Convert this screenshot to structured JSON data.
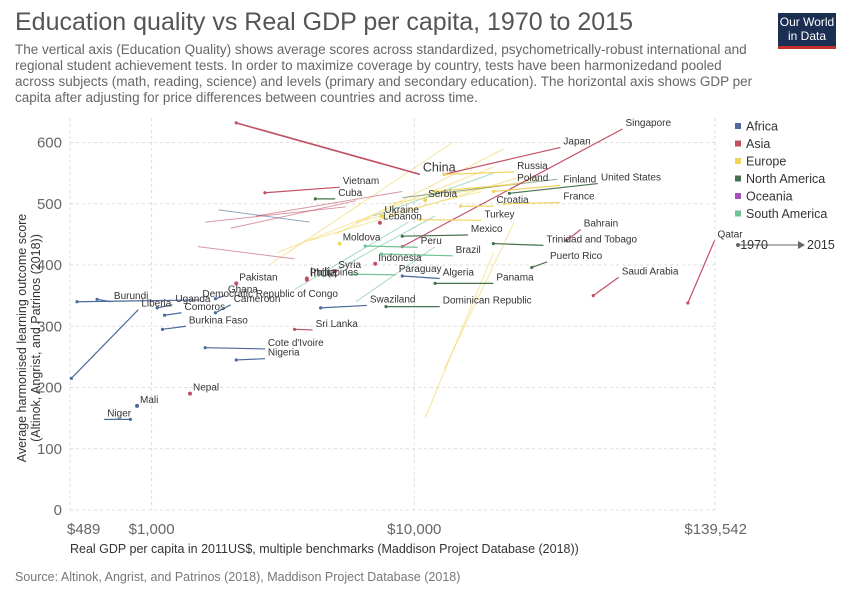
{
  "title": "Education quality vs Real GDP per capita, 1970 to 2015",
  "subtitle": "The vertical axis (Education Quality) shows average scores across standardized, psychometrically-robust international and regional student achievement tests. In order to maximize coverage by country, tests have been harmonizedand pooled across subjects (math, reading, science) and levels (primary and secondary education). The horizontal axis shows GDP per capita after adjusting for price differences between countries and across time.",
  "logo": {
    "line1": "Our World",
    "line2": "in Data"
  },
  "source": "Source: Altinok, Angrist, and Patrinos (2018), Maddison Project Database (2018)",
  "colors": {
    "Africa": "#4c6a9c",
    "Asia": "#c15065",
    "Europe": "#f1d45c",
    "North America": "#47714e",
    "Oceania": "#a652ba",
    "South America": "#6ec295",
    "neutral": "#cccccc"
  },
  "chart_data": {
    "type": "scatter",
    "xlabel": "Real GDP per capita in 2011US$, multiple benchmarks (Maddison Project Database (2018))",
    "ylabel": "Average harmonised learning outcome score (Altinok, Angrist, and Patrinos (2018))",
    "x_scale": "log",
    "xlim": [
      489,
      139542
    ],
    "ylim": [
      0,
      640
    ],
    "x_ticks": [
      489,
      1000,
      10000,
      139542
    ],
    "x_tick_labels": [
      "$489",
      "$1,000",
      "$10,000",
      "$139,542"
    ],
    "y_ticks": [
      0,
      100,
      200,
      300,
      400,
      500,
      600
    ],
    "grid": true,
    "legend_position": "right",
    "legend": [
      "Africa",
      "Asia",
      "Europe",
      "North America",
      "Oceania",
      "South America"
    ],
    "time_legend": {
      "start": "1970",
      "end": "2015"
    },
    "series": [
      {
        "name": "China",
        "region": "Asia",
        "label_size": "big",
        "points": [
          [
            2100,
            632
          ],
          [
            10500,
            548
          ]
        ]
      },
      {
        "name": "India",
        "region": "Asia",
        "label_size": "big",
        "points": [
          [
            3900,
            376
          ]
        ]
      },
      {
        "name": "Singapore",
        "region": "Asia",
        "points": [
          [
            9000,
            430
          ],
          [
            62000,
            622
          ]
        ]
      },
      {
        "name": "Japan",
        "region": "Asia",
        "points": [
          [
            13000,
            548
          ],
          [
            36000,
            592
          ]
        ]
      },
      {
        "name": "Vietnam",
        "region": "Asia",
        "points": [
          [
            2700,
            518
          ],
          [
            5200,
            527
          ]
        ]
      },
      {
        "name": "Qatar",
        "region": "Asia",
        "points": [
          [
            110000,
            338
          ],
          [
            139000,
            440
          ]
        ]
      },
      {
        "name": "Saudi Arabia",
        "region": "Asia",
        "points": [
          [
            48000,
            350
          ],
          [
            60000,
            380
          ]
        ]
      },
      {
        "name": "Bahrain",
        "region": "Asia",
        "points": [
          [
            38000,
            440
          ],
          [
            43000,
            458
          ]
        ]
      },
      {
        "name": "Pakistan",
        "region": "Asia",
        "points": [
          [
            2100,
            370
          ]
        ]
      },
      {
        "name": "Philippines",
        "region": "Asia",
        "points": [
          [
            3900,
            378
          ]
        ]
      },
      {
        "name": "Sri Lanka",
        "region": "Asia",
        "points": [
          [
            3500,
            295
          ],
          [
            4100,
            294
          ]
        ]
      },
      {
        "name": "Indonesia",
        "region": "Asia",
        "points": [
          [
            7100,
            402
          ]
        ]
      },
      {
        "name": "Syria",
        "region": "Asia",
        "points": [
          [
            5000,
            390
          ]
        ]
      },
      {
        "name": "Lebanon",
        "region": "Asia",
        "points": [
          [
            7400,
            469
          ]
        ]
      },
      {
        "name": "Russia",
        "region": "Europe",
        "points": [
          [
            13000,
            548
          ],
          [
            24000,
            552
          ]
        ]
      },
      {
        "name": "Poland",
        "region": "Europe",
        "points": [
          [
            12000,
            520
          ],
          [
            24000,
            532
          ]
        ]
      },
      {
        "name": "Finland",
        "region": "Europe",
        "points": [
          [
            20000,
            520
          ],
          [
            36000,
            530
          ]
        ]
      },
      {
        "name": "France",
        "region": "Europe",
        "points": [
          [
            22000,
            500
          ],
          [
            36000,
            502
          ]
        ]
      },
      {
        "name": "Serbia",
        "region": "Europe",
        "points": [
          [
            11000,
            506
          ]
        ]
      },
      {
        "name": "Croatia",
        "region": "Europe",
        "points": [
          [
            15000,
            496
          ],
          [
            20000,
            496
          ]
        ]
      },
      {
        "name": "Turkey",
        "region": "Europe",
        "points": [
          [
            10500,
            474
          ],
          [
            18000,
            473
          ]
        ]
      },
      {
        "name": "Ukraine",
        "region": "Europe",
        "points": [
          [
            7500,
            480
          ]
        ]
      },
      {
        "name": "Moldova",
        "region": "Europe",
        "points": [
          [
            5200,
            435
          ]
        ]
      },
      {
        "name": "United States",
        "region": "North America",
        "points": [
          [
            23000,
            517
          ],
          [
            50000,
            533
          ]
        ]
      },
      {
        "name": "Mexico",
        "region": "North America",
        "points": [
          [
            9000,
            447
          ],
          [
            16000,
            449
          ]
        ]
      },
      {
        "name": "Trinidad and Tobago",
        "region": "North America",
        "points": [
          [
            20000,
            435
          ],
          [
            31000,
            432
          ]
        ]
      },
      {
        "name": "Puerto Rico",
        "region": "North America",
        "points": [
          [
            28000,
            396
          ],
          [
            32000,
            405
          ]
        ]
      },
      {
        "name": "Dominican Republic",
        "region": "North America",
        "points": [
          [
            7800,
            332
          ],
          [
            12500,
            332
          ]
        ]
      },
      {
        "name": "Cuba",
        "region": "North America",
        "points": [
          [
            4200,
            508
          ],
          [
            5000,
            508
          ]
        ]
      },
      {
        "name": "Peru",
        "region": "South America",
        "points": [
          [
            6500,
            431
          ],
          [
            10300,
            429
          ]
        ]
      },
      {
        "name": "Brazil",
        "region": "South America",
        "points": [
          [
            7500,
            418
          ],
          [
            14000,
            415
          ]
        ]
      },
      {
        "name": "Paraguay",
        "region": "South America",
        "points": [
          [
            5800,
            385
          ],
          [
            8500,
            384
          ]
        ]
      },
      {
        "name": "Algeria",
        "region": "Africa",
        "points": [
          [
            9000,
            382
          ],
          [
            12500,
            378
          ]
        ]
      },
      {
        "name": "Panama",
        "region": "North America",
        "points": [
          [
            12000,
            370
          ],
          [
            20000,
            370
          ]
        ]
      },
      {
        "name": "Swaziland",
        "region": "Africa",
        "points": [
          [
            4400,
            330
          ],
          [
            6600,
            334
          ]
        ]
      },
      {
        "name": "Democratic Republic of Congo",
        "region": "Africa",
        "points": [
          [
            520,
            340
          ],
          [
            1520,
            343
          ]
        ]
      },
      {
        "name": "Burundi",
        "region": "Africa",
        "points": [
          [
            620,
            344
          ],
          [
            700,
            340
          ]
        ]
      },
      {
        "name": "Liberia",
        "region": "Africa",
        "points": [
          [
            495,
            215
          ],
          [
            890,
            327
          ]
        ]
      },
      {
        "name": "Ghana",
        "region": "Africa",
        "points": [
          [
            1750,
            345
          ],
          [
            1900,
            350
          ]
        ]
      },
      {
        "name": "Uganda",
        "region": "Africa",
        "points": [
          [
            1050,
            330
          ],
          [
            1200,
            335
          ]
        ]
      },
      {
        "name": "Cameroon",
        "region": "Africa",
        "points": [
          [
            1750,
            322
          ],
          [
            2000,
            335
          ]
        ]
      },
      {
        "name": "Comoros",
        "region": "Africa",
        "points": [
          [
            1120,
            318
          ],
          [
            1300,
            322
          ]
        ]
      },
      {
        "name": "Burkina Faso",
        "region": "Africa",
        "points": [
          [
            1100,
            295
          ],
          [
            1350,
            300
          ]
        ]
      },
      {
        "name": "Cote d'Ivoire",
        "region": "Africa",
        "points": [
          [
            1600,
            265
          ],
          [
            2700,
            263
          ]
        ]
      },
      {
        "name": "Nigeria",
        "region": "Africa",
        "points": [
          [
            2100,
            245
          ],
          [
            2700,
            247
          ]
        ]
      },
      {
        "name": "Nepal",
        "region": "Asia",
        "points": [
          [
            1400,
            190
          ]
        ]
      },
      {
        "name": "Mali",
        "region": "Africa",
        "points": [
          [
            880,
            170
          ]
        ]
      },
      {
        "name": "Niger",
        "region": "Africa",
        "points": [
          [
            830,
            148
          ],
          [
            660,
            148
          ]
        ]
      }
    ]
  },
  "background_trend": [
    [
      2800,
      400,
      14000,
      600
    ],
    [
      3000,
      420,
      20000,
      560
    ],
    [
      4000,
      440,
      26000,
      545
    ],
    [
      5000,
      450,
      22000,
      590
    ],
    [
      6000,
      470,
      18000,
      520
    ],
    [
      7000,
      480,
      20000,
      550
    ],
    [
      8000,
      500,
      30000,
      540
    ],
    [
      9000,
      510,
      35000,
      540
    ],
    [
      2500,
      480,
      9000,
      520
    ],
    [
      3500,
      360,
      9500,
      470
    ],
    [
      4500,
      380,
      12000,
      480
    ],
    [
      6000,
      340,
      12000,
      430
    ],
    [
      11000,
      150,
      20000,
      420
    ],
    [
      13000,
      230,
      24000,
      470
    ],
    [
      2000,
      460,
      6000,
      505
    ],
    [
      1800,
      490,
      4000,
      470
    ],
    [
      1500,
      430,
      3500,
      410
    ],
    [
      1600,
      470,
      5500,
      495
    ]
  ]
}
